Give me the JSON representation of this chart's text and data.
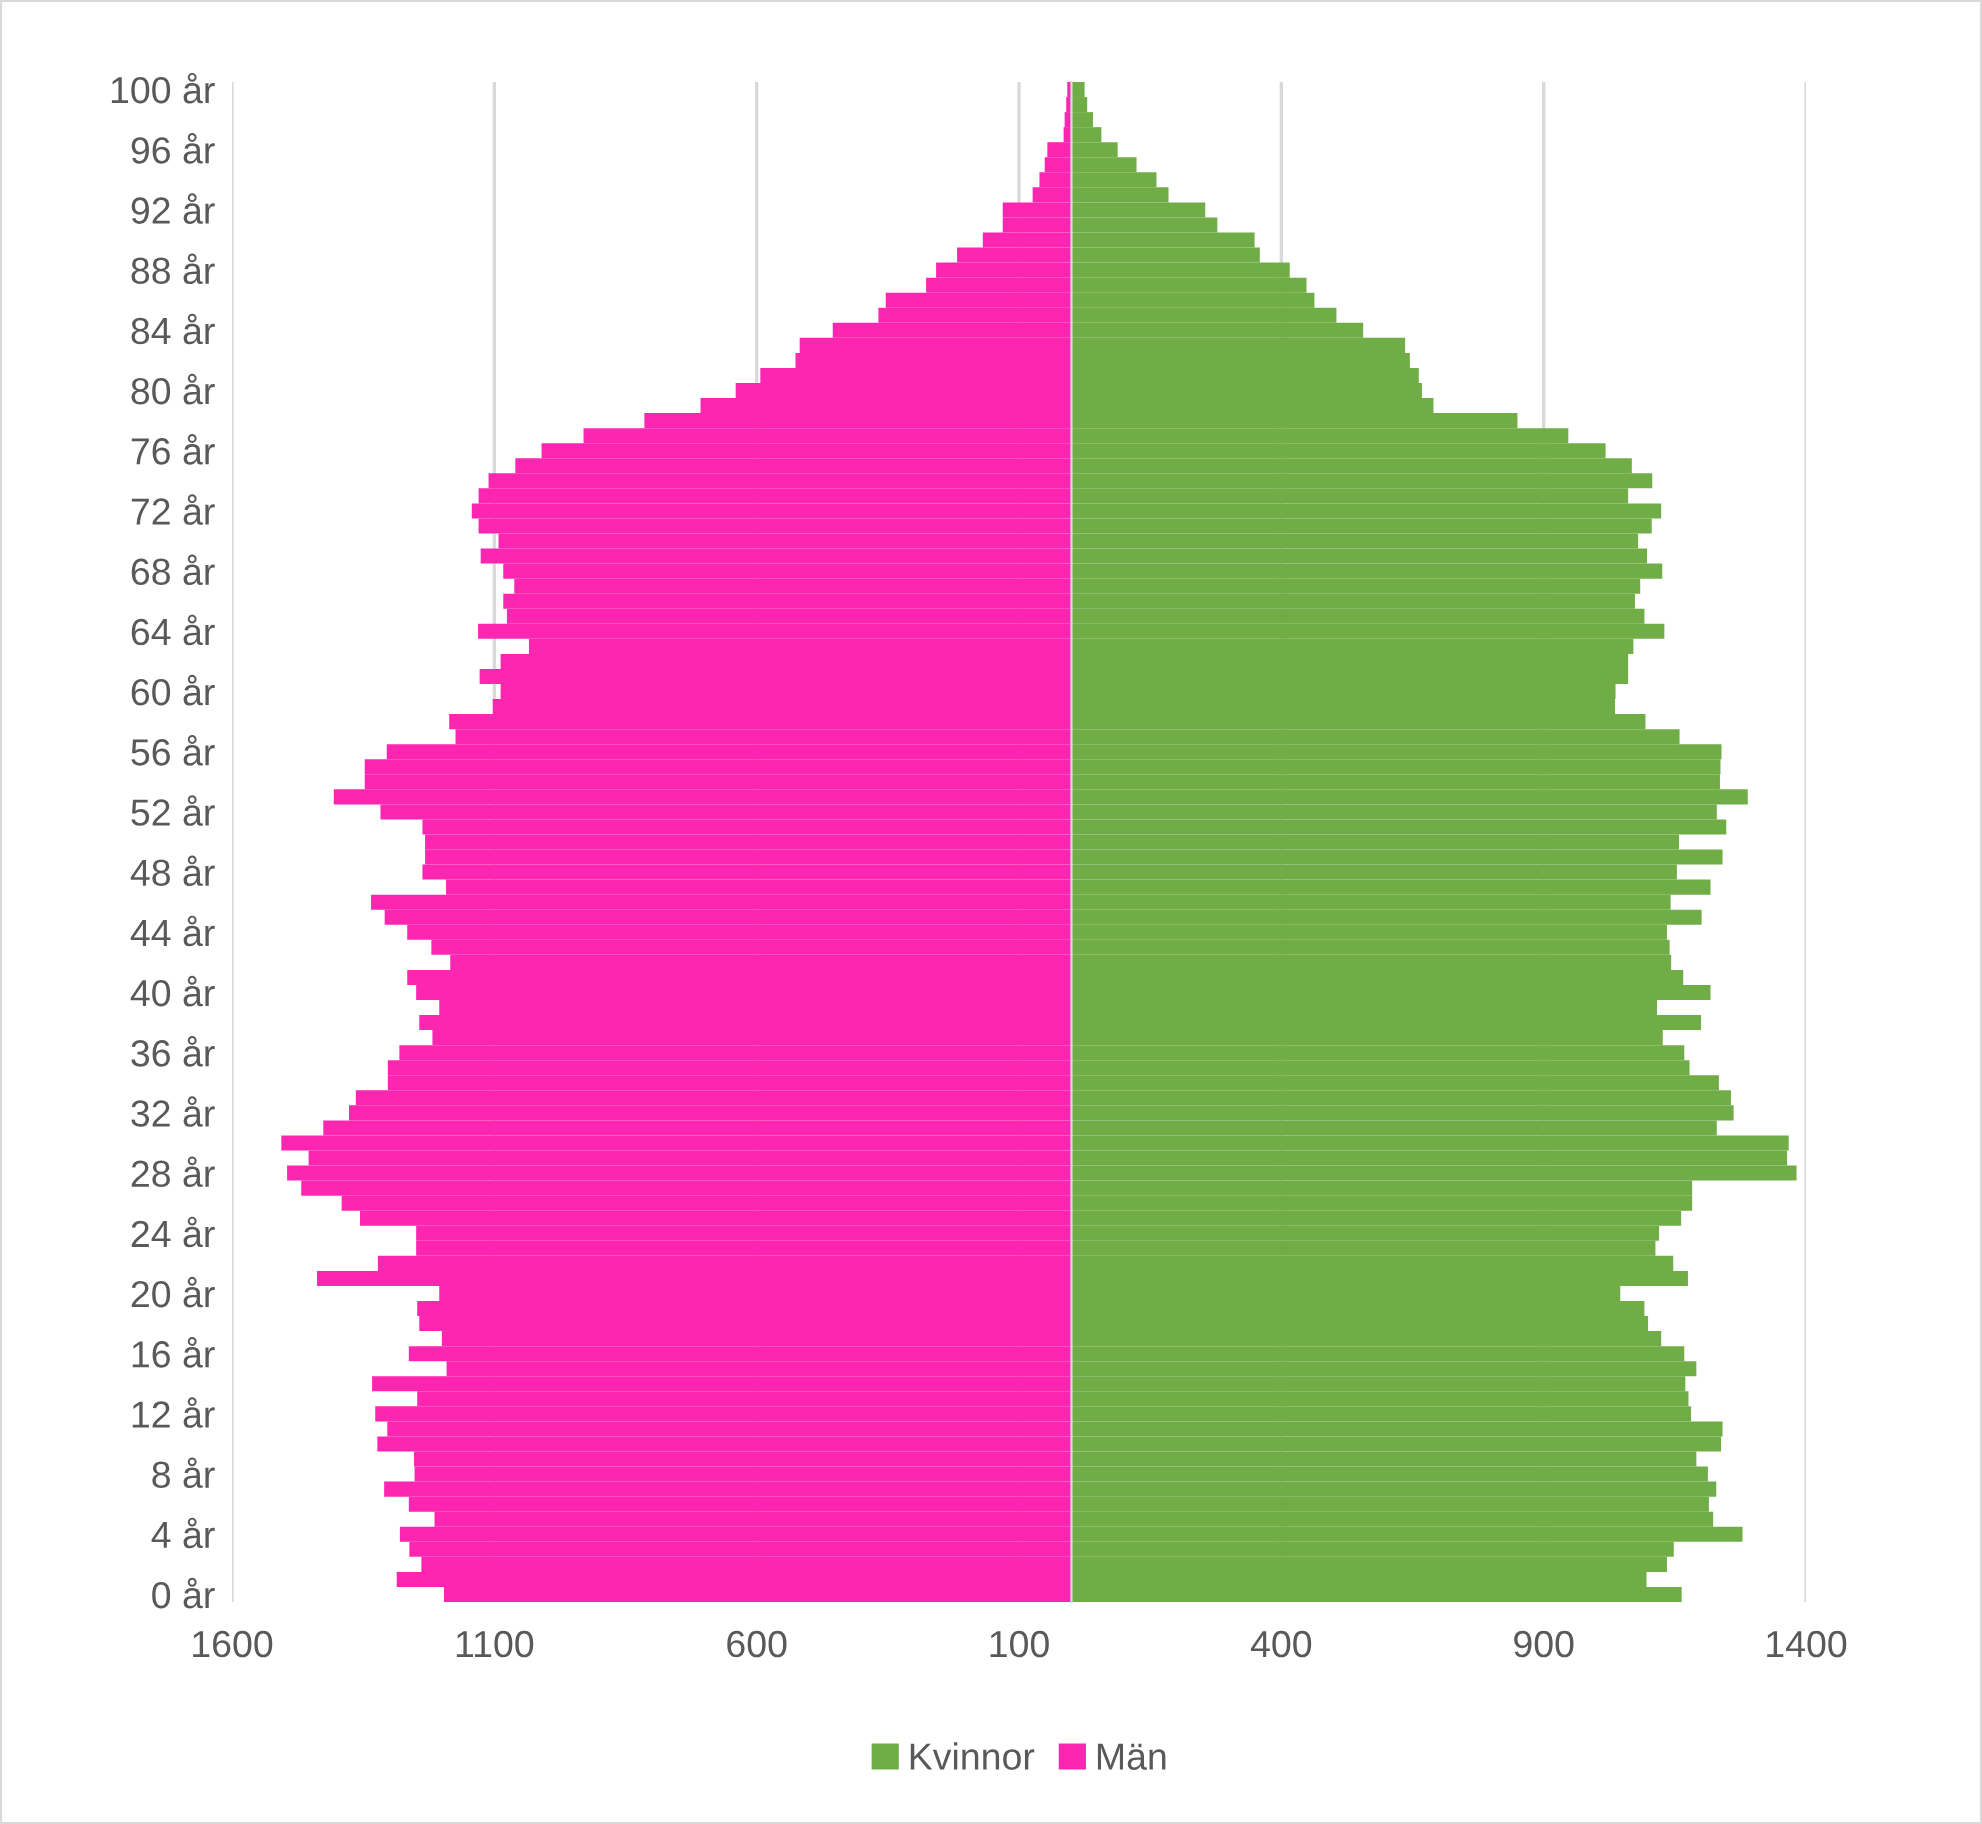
{
  "chart_data": {
    "type": "bar",
    "orientation": "horizontal",
    "stacked": true,
    "categories": [
      "100 år",
      null,
      null,
      null,
      "96 år",
      null,
      null,
      null,
      "92 år",
      null,
      null,
      null,
      "88 år",
      null,
      null,
      null,
      "84 år",
      null,
      null,
      null,
      "80 år",
      null,
      null,
      null,
      "76 år",
      null,
      null,
      null,
      "72 år",
      null,
      null,
      null,
      "68 år",
      null,
      null,
      null,
      "64 år",
      null,
      null,
      null,
      "60 år",
      null,
      null,
      null,
      "56 år",
      null,
      null,
      null,
      "52 år",
      null,
      null,
      null,
      "48 år",
      null,
      null,
      null,
      "44 år",
      null,
      null,
      null,
      "40 år",
      null,
      null,
      null,
      "36 år",
      null,
      null,
      null,
      "32 år",
      null,
      null,
      null,
      "28 år",
      null,
      null,
      null,
      "24 år",
      null,
      null,
      null,
      "20 år",
      null,
      null,
      null,
      "16 år",
      null,
      null,
      null,
      "12 år",
      null,
      null,
      null,
      "8 år",
      null,
      null,
      null,
      "4 år",
      null,
      null,
      null,
      "0 år"
    ],
    "series": [
      {
        "name": "Kvinnor",
        "color": "#70ad47",
        "values": [
          25,
          30,
          41,
          57,
          88,
          124,
          162,
          185,
          255,
          278,
          349,
          359,
          416,
          448,
          463,
          505,
          556,
          636,
          645,
          662,
          668,
          690,
          850,
          947,
          1018,
          1068,
          1107,
          1061,
          1124,
          1106,
          1080,
          1097,
          1126,
          1084,
          1074,
          1092,
          1130,
          1071,
          1061,
          1061,
          1037,
          1036,
          1094,
          1159,
          1239,
          1237,
          1236,
          1289,
          1230,
          1248,
          1158,
          1241,
          1154,
          1218,
          1142,
          1201,
          1135,
          1140,
          1143,
          1166,
          1218,
          1116,
          1200,
          1127,
          1168,
          1178,
          1234,
          1257,
          1262,
          1230,
          1367,
          1364,
          1382,
          1183,
          1183,
          1162,
          1120,
          1113,
          1147,
          1175,
          1046,
          1092,
          1099,
          1124,
          1168,
          1191,
          1170,
          1176,
          1181,
          1241,
          1238,
          1191,
          1213,
          1229,
          1215,
          1223,
          1279,
          1148,
          1135,
          1096,
          1163
        ]
      },
      {
        "name": "Män",
        "color": "#fc26b1",
        "values": [
          -8,
          -10,
          -13,
          -15,
          -46,
          -51,
          -61,
          -74,
          -131,
          -131,
          -169,
          -218,
          -258,
          -277,
          -354,
          -368,
          -455,
          -518,
          -526,
          -593,
          -640,
          -707,
          -814,
          -930,
          -1010,
          -1060,
          -1111,
          -1130,
          -1143,
          -1130,
          -1092,
          -1126,
          -1083,
          -1062,
          -1083,
          -1076,
          -1131,
          -1034,
          -1088,
          -1128,
          -1088,
          -1103,
          -1186,
          -1174,
          -1305,
          -1347,
          -1347,
          -1406,
          -1317,
          -1237,
          -1232,
          -1232,
          -1237,
          -1192,
          -1335,
          -1309,
          -1266,
          -1220,
          -1184,
          -1266,
          -1249,
          -1205,
          -1243,
          -1218,
          -1281,
          -1303,
          -1303,
          -1364,
          -1377,
          -1426,
          -1506,
          -1454,
          -1495,
          -1468,
          -1391,
          -1356,
          -1249,
          -1249,
          -1322,
          -1438,
          -1205,
          -1247,
          -1243,
          -1200,
          -1263,
          -1191,
          -1333,
          -1247,
          -1327,
          -1304,
          -1323,
          -1253,
          -1252,
          -1310,
          -1263,
          -1214,
          -1280,
          -1262,
          -1239,
          -1286,
          -1196
        ]
      }
    ],
    "xlim": [
      -1600,
      1400
    ],
    "xticks": [
      {
        "value": -1600,
        "label": "1600"
      },
      {
        "value": -1100,
        "label": "1100"
      },
      {
        "value": -600,
        "label": "600"
      },
      {
        "value": -100,
        "label": "100"
      },
      400,
      900,
      1400
    ],
    "grid": "x",
    "legend": "bottom"
  }
}
